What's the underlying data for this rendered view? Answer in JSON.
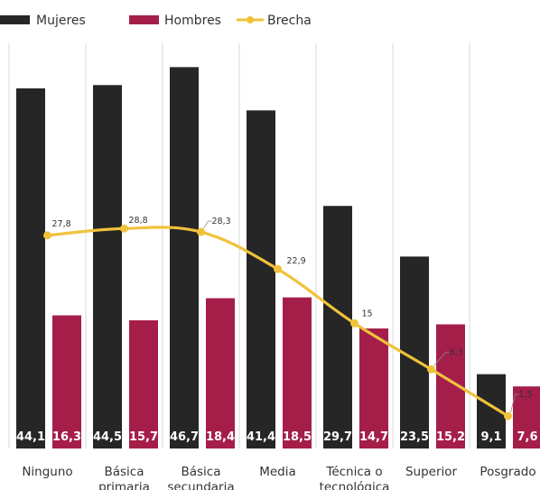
{
  "chart_data": {
    "type": "bar",
    "title": "",
    "xlabel": "",
    "ylabel": "",
    "categories": [
      "Ninguno",
      "Básica primaria",
      "Básica secundaria",
      "Media",
      "Técnica o tecnológica",
      "Superior",
      "Posgrado"
    ],
    "series": [
      {
        "name": "Mujeres",
        "type": "bar",
        "color": "#262626",
        "values": [
          44.1,
          44.5,
          46.7,
          41.4,
          29.7,
          23.5,
          9.1
        ],
        "labels": [
          "44,1",
          "44,5",
          "46,7",
          "41,4",
          "29,7",
          "23,5",
          "9,1"
        ]
      },
      {
        "name": "Hombres",
        "type": "bar",
        "color": "#A51E4A",
        "values": [
          16.3,
          15.7,
          18.4,
          18.5,
          14.7,
          15.2,
          7.6
        ],
        "labels": [
          "16,3",
          "15,7",
          "18,4",
          "18,5",
          "14,7",
          "15,2",
          "7,6"
        ]
      },
      {
        "name": "Brecha",
        "type": "line",
        "color": "#F0C23B",
        "values": [
          27.8,
          28.8,
          28.3,
          22.9,
          15,
          8.3,
          1.5
        ],
        "labels": [
          "27,8",
          "28,8",
          "28,3",
          "22,9",
          "15",
          "8,3",
          "1,5"
        ]
      }
    ],
    "ylim": [
      0,
      50
    ],
    "grid": false,
    "legend": "top-left"
  }
}
